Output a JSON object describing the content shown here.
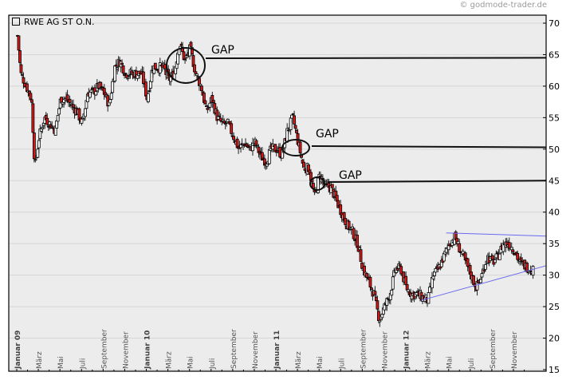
{
  "credit": "© godmode-trader.de",
  "chart_data": {
    "type": "candlestick",
    "title": "RWE AG ST O.N.",
    "xlabel": "",
    "ylabel": "",
    "ylim": [
      15,
      70
    ],
    "yticks": [
      15,
      20,
      25,
      30,
      35,
      40,
      45,
      50,
      55,
      60,
      65,
      70
    ],
    "grid": true,
    "colors": {
      "up": "#ffffff",
      "down": "#d81818",
      "wick": "#000000",
      "trendline": "#6a6af0",
      "background": "#ececec"
    },
    "xticks": [
      {
        "label": "Januar 09",
        "bold": true
      },
      {
        "label": "März"
      },
      {
        "label": "Mai"
      },
      {
        "label": "Juli"
      },
      {
        "label": "September"
      },
      {
        "label": "November"
      },
      {
        "label": "Januar 10",
        "bold": true
      },
      {
        "label": "März"
      },
      {
        "label": "Mai"
      },
      {
        "label": "Juli"
      },
      {
        "label": "September"
      },
      {
        "label": "November"
      },
      {
        "label": "Januar 11",
        "bold": true
      },
      {
        "label": "März"
      },
      {
        "label": "Mai"
      },
      {
        "label": "Juli"
      },
      {
        "label": "September"
      },
      {
        "label": "November"
      },
      {
        "label": "Januar 12",
        "bold": true
      },
      {
        "label": "März"
      },
      {
        "label": "Mai"
      },
      {
        "label": "Juli"
      },
      {
        "label": "September"
      },
      {
        "label": "November"
      }
    ],
    "approx_close_path": {
      "x_months_from_jan09": [
        0,
        0.3,
        0.8,
        1.3,
        1.6,
        2.0,
        2.5,
        3.0,
        3.5,
        4.0,
        4.5,
        5.0,
        5.5,
        6.0,
        6.5,
        7.0,
        7.5,
        8.0,
        8.5,
        9.0,
        9.5,
        10.0,
        10.5,
        11.0,
        11.5,
        12.0,
        12.5,
        13.0,
        13.5,
        14.0,
        14.5,
        15.0,
        15.5,
        16.0,
        16.5,
        17.0,
        17.5,
        18.0,
        18.5,
        19.0,
        19.5,
        20.0,
        20.5,
        21.0,
        21.5,
        22.0,
        22.5,
        23.0,
        23.5,
        24.0,
        24.5,
        25.0,
        25.5,
        26.0,
        26.5,
        27.0,
        27.5,
        28.0,
        28.5,
        29.0,
        29.5,
        30.0,
        30.5,
        31.0,
        31.5,
        32.0,
        32.5,
        33.0,
        33.5,
        34.0,
        34.5,
        35.0,
        35.5,
        36.0,
        36.5,
        37.0,
        37.5,
        38.0,
        38.5,
        39.0,
        39.5,
        40.0,
        40.5,
        41.0,
        41.5,
        42.0,
        42.5,
        43.0,
        43.5,
        44.0,
        44.5,
        45.0,
        45.5,
        46.0,
        46.5,
        47.0,
        47.5,
        47.8
      ],
      "close": [
        68,
        62,
        60,
        58,
        47,
        52,
        55,
        54,
        53,
        58,
        58,
        57,
        56,
        54,
        59,
        59,
        60,
        59,
        57,
        63,
        64,
        62,
        62,
        62,
        62,
        58,
        63,
        63,
        63,
        61,
        62,
        67,
        64,
        66,
        62,
        60,
        56,
        58,
        55,
        54,
        54,
        52,
        50,
        51,
        50,
        51,
        49,
        48,
        50,
        50,
        49,
        53,
        55,
        51,
        47,
        47,
        42.5,
        46,
        44,
        44,
        42,
        40,
        38,
        37,
        35,
        31,
        29,
        27,
        23,
        25,
        27,
        31,
        31,
        28,
        27,
        27,
        26.5,
        26,
        30,
        31,
        33,
        35,
        36,
        34,
        32,
        30,
        28,
        30,
        33,
        32,
        33,
        35,
        35,
        34,
        32,
        31.5,
        31,
        31
      ]
    },
    "annotations": [
      {
        "type": "ellipse_gap",
        "label": "GAP",
        "center": {
          "month": 16.2,
          "value": 63.5
        },
        "line_value": 64.5
      },
      {
        "type": "ellipse_gap",
        "label": "GAP",
        "center": {
          "month": 27.5,
          "value": 50.2
        },
        "line_value": 50.3
      },
      {
        "type": "ellipse_gap",
        "label": "GAP",
        "center": {
          "month": 29.0,
          "value": 44.5
        },
        "line_value": 45.0
      }
    ],
    "trendlines": [
      {
        "name": "upper resistance",
        "from": {
          "month": 39.7,
          "value": 36.7
        },
        "to": {
          "month": 48.5,
          "value": 36.2
        }
      },
      {
        "name": "lower support",
        "from": {
          "month": 37.4,
          "value": 26.0
        },
        "to": {
          "month": 48.5,
          "value": 31.5
        }
      }
    ]
  }
}
